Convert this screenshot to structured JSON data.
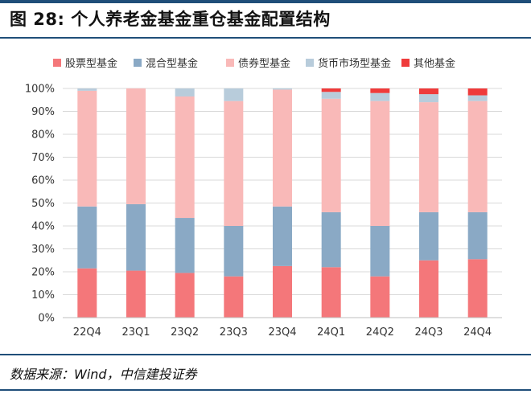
{
  "header": {
    "title": "图 28: 个人养老金基金重仓基金配置结构"
  },
  "footer": {
    "source": "数据来源：Wind，中信建投证券"
  },
  "chart_data": {
    "type": "bar",
    "stacked": true,
    "orientation": "vertical",
    "categories": [
      "22Q4",
      "23Q1",
      "23Q2",
      "23Q3",
      "23Q4",
      "24Q1",
      "24Q2",
      "24Q3",
      "24Q4"
    ],
    "series": [
      {
        "name": "股票型基金",
        "color": "#f4777a",
        "values": [
          21.5,
          20.5,
          19.5,
          18.0,
          22.5,
          22.0,
          18.0,
          25.0,
          25.5
        ]
      },
      {
        "name": "混合型基金",
        "color": "#8aa9c5",
        "values": [
          27.0,
          29.0,
          24.0,
          22.0,
          26.0,
          24.0,
          22.0,
          21.0,
          20.5
        ]
      },
      {
        "name": "债券型基金",
        "color": "#f9b9b8",
        "values": [
          50.5,
          50.5,
          53.0,
          54.5,
          51.0,
          49.5,
          54.5,
          48.0,
          48.5
        ]
      },
      {
        "name": "货币市场型基金",
        "color": "#b8ccdb",
        "values": [
          1.0,
          0.0,
          3.5,
          5.5,
          0.5,
          3.0,
          3.5,
          3.5,
          2.5
        ]
      },
      {
        "name": "其他基金",
        "color": "#ef3b3b",
        "values": [
          0.0,
          0.0,
          0.0,
          0.0,
          0.0,
          1.5,
          2.0,
          2.5,
          3.0
        ]
      }
    ],
    "yticks": [
      "0%",
      "10%",
      "20%",
      "30%",
      "40%",
      "50%",
      "60%",
      "70%",
      "80%",
      "90%",
      "100%"
    ],
    "ylim": [
      0,
      100
    ],
    "grid": true,
    "legend_position": "top"
  }
}
